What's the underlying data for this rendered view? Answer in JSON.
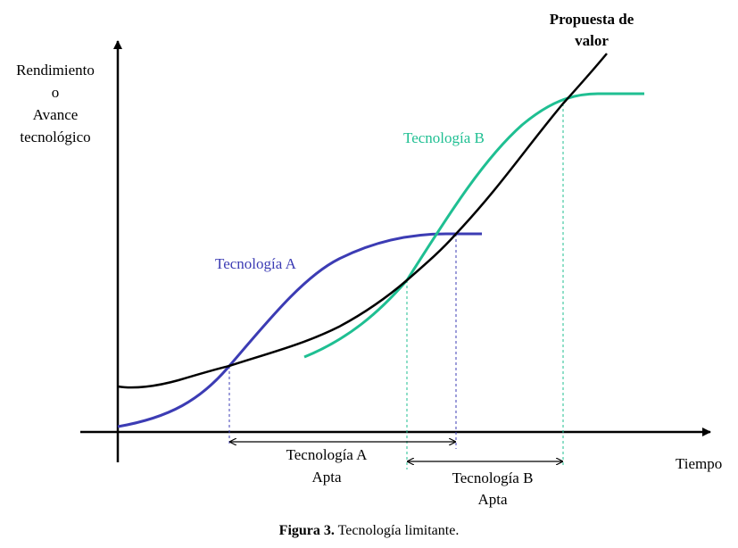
{
  "y_axis_label": [
    "Rendimiento",
    "o",
    "Avance",
    "tecnológico"
  ],
  "x_axis_label": "Tiempo",
  "curves": {
    "value": {
      "label": [
        "Propuesta de",
        "valor"
      ],
      "color": "#000000"
    },
    "tech_a": {
      "label": "Tecnología A",
      "color": "#3c3cb4"
    },
    "tech_b": {
      "label": "Tecnología B",
      "color": "#1fbf92"
    }
  },
  "intervals": {
    "a": {
      "label": [
        "Tecnología A",
        "Apta"
      ]
    },
    "b": {
      "label": [
        "Tecnología B",
        "Apta"
      ]
    }
  },
  "caption": {
    "number": "Figura 3.",
    "text": " Tecnología limitante."
  }
}
